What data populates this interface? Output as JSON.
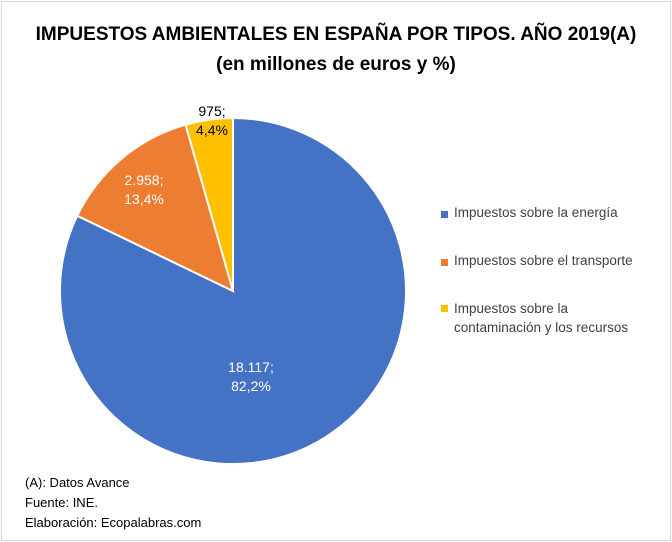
{
  "chart_data": {
    "type": "pie",
    "title": "IMPUESTOS AMBIENTALES EN ESPAÑA POR TIPOS. AÑO 2019(A)",
    "subtitle": "(en millones de euros y %)",
    "legend_position": "right",
    "slices": [
      {
        "name": "Impuestos sobre la energía",
        "value": 18117,
        "percent": 82.2,
        "label_line1": "18.117;",
        "label_line2": "82,2%",
        "color": "#4472C4"
      },
      {
        "name": "Impuestos sobre el transporte",
        "value": 2958,
        "percent": 13.4,
        "label_line1": "2.958;",
        "label_line2": "13,4%",
        "color": "#ED7D31"
      },
      {
        "name": "Impuestos sobre la contaminación y los recursos",
        "value": 975,
        "percent": 4.4,
        "label_line1": "975;",
        "label_line2": "4,4%",
        "color": "#FFC000"
      }
    ],
    "legend_lines": [
      [
        "Impuestos sobre la energía"
      ],
      [
        "Impuestos sobre el transporte"
      ],
      [
        "Impuestos sobre la",
        "contaminación y los recursos"
      ]
    ]
  },
  "notes": [
    "(A): Datos Avance",
    "Fuente: INE.",
    "Elaboración: Ecopalabras.com"
  ]
}
